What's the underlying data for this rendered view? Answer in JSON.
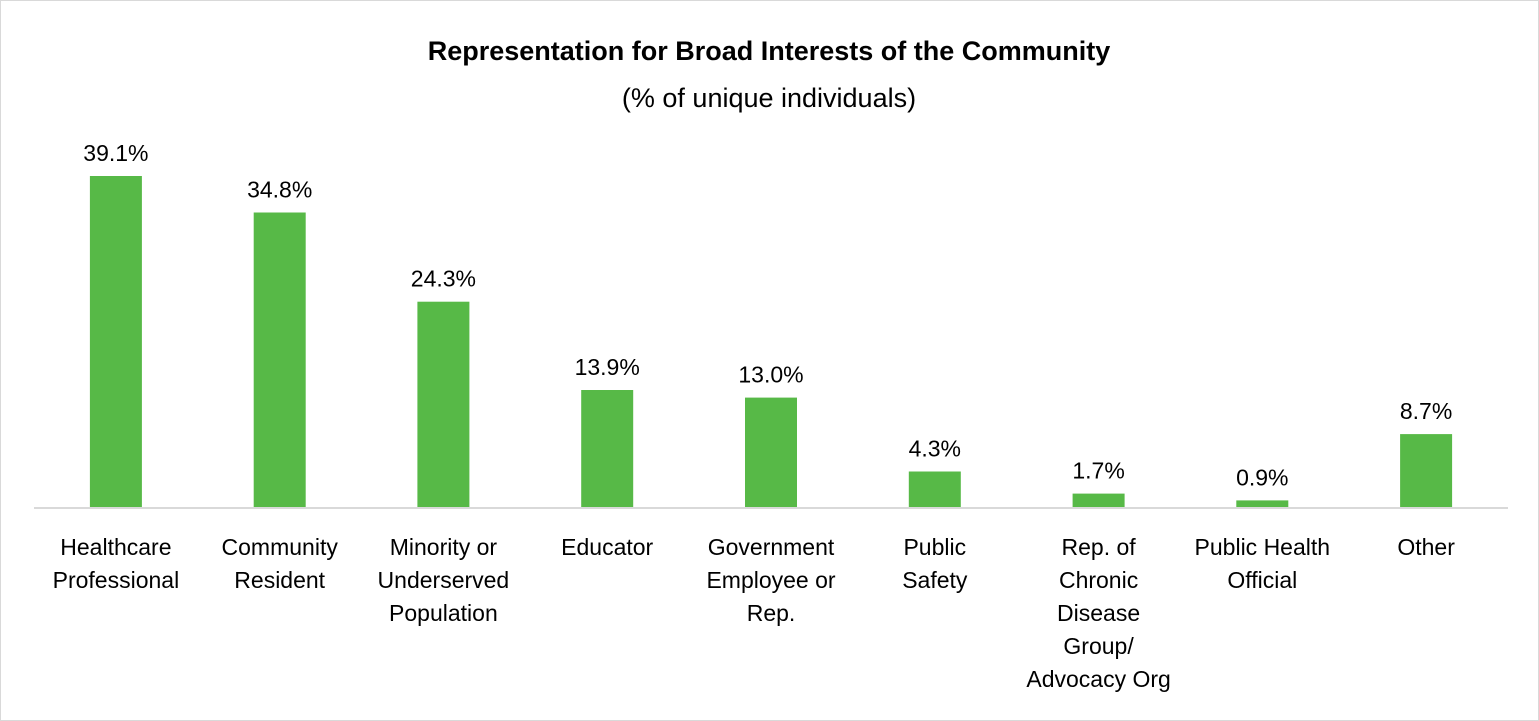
{
  "chart_data": {
    "type": "bar",
    "title": "Representation for Broad Interests of the Community",
    "subtitle": "(% of unique individuals)",
    "xlabel": "",
    "ylabel": "",
    "ylim": [
      0,
      45
    ],
    "grid": false,
    "legend": "none",
    "bar_color": "#57b947",
    "categories": [
      [
        "Healthcare",
        "Professional"
      ],
      [
        "Community",
        "Resident"
      ],
      [
        "Minority or",
        "Underserved",
        "Population"
      ],
      [
        "Educator"
      ],
      [
        "Government",
        "Employee or",
        "Rep."
      ],
      [
        "Public",
        "Safety"
      ],
      [
        "Rep. of",
        "Chronic",
        "Disease",
        "Group/",
        "Advocacy Org"
      ],
      [
        "Public Health",
        "Official"
      ],
      [
        "Other"
      ]
    ],
    "values": [
      39.1,
      34.8,
      24.3,
      13.9,
      13.0,
      4.3,
      1.7,
      0.9,
      8.7
    ],
    "data_labels": [
      "39.1%",
      "34.8%",
      "24.3%",
      "13.9%",
      "13.0%",
      "4.3%",
      "1.7%",
      "0.9%",
      "8.7%"
    ]
  }
}
